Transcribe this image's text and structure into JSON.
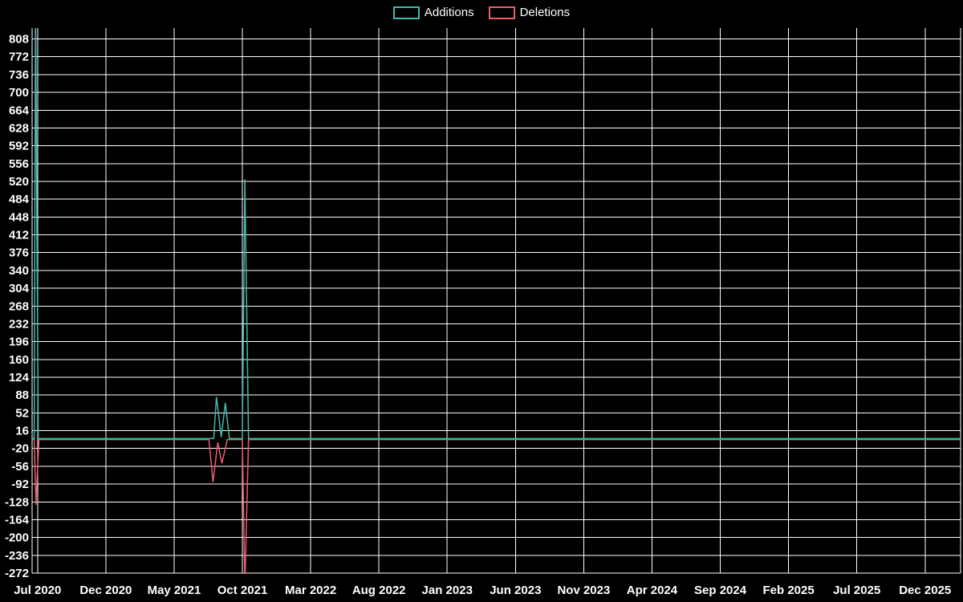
{
  "chart_data": {
    "type": "line",
    "title": "",
    "xlabel": "",
    "ylabel": "",
    "grid": true,
    "legend_position": "top-center",
    "background_color": "#000000",
    "grid_color": "#ffffff",
    "text_color": "#ffffff",
    "x_tick_labels": [
      "Jul 2020",
      "Dec 2020",
      "May 2021",
      "Oct 2021",
      "Mar 2022",
      "Aug 2022",
      "Jan 2023",
      "Jun 2023",
      "Nov 2023",
      "Apr 2024",
      "Sep 2024",
      "Feb 2025",
      "Jul 2025",
      "Dec 2025"
    ],
    "x_tick_months": [
      0,
      5,
      10,
      15,
      20,
      25,
      30,
      35,
      40,
      45,
      50,
      55,
      60,
      65
    ],
    "y_ticks": [
      808,
      772,
      736,
      700,
      664,
      628,
      592,
      556,
      520,
      484,
      448,
      412,
      376,
      340,
      304,
      268,
      232,
      196,
      160,
      124,
      88,
      52,
      16,
      -20,
      -56,
      -92,
      -128,
      -164,
      -200,
      -236,
      -272
    ],
    "ylim": [
      -272,
      830
    ],
    "xlim": [
      -0.4,
      67.6
    ],
    "series": [
      {
        "name": "Additions",
        "color": "#45b7ac",
        "points": [
          [
            -0.41,
            0
          ],
          [
            -0.25,
            0
          ],
          [
            -0.15,
            870
          ],
          [
            0.05,
            0
          ],
          [
            12.9,
            0
          ],
          [
            13.1,
            84
          ],
          [
            13.45,
            3
          ],
          [
            13.75,
            72
          ],
          [
            14.05,
            0
          ],
          [
            15.0,
            0
          ],
          [
            15.18,
            524
          ],
          [
            15.45,
            0
          ],
          [
            67.6,
            0
          ]
        ]
      },
      {
        "name": "Deletions",
        "color": "#ea5c6b",
        "points": [
          [
            -0.41,
            0
          ],
          [
            -0.25,
            0
          ],
          [
            -0.12,
            -132
          ],
          [
            0.1,
            0
          ],
          [
            12.55,
            0
          ],
          [
            12.85,
            -86
          ],
          [
            13.2,
            -6
          ],
          [
            13.5,
            -48
          ],
          [
            13.9,
            0
          ],
          [
            15.0,
            0
          ],
          [
            15.18,
            -300
          ],
          [
            15.45,
            0
          ],
          [
            67.6,
            0
          ]
        ]
      }
    ]
  }
}
